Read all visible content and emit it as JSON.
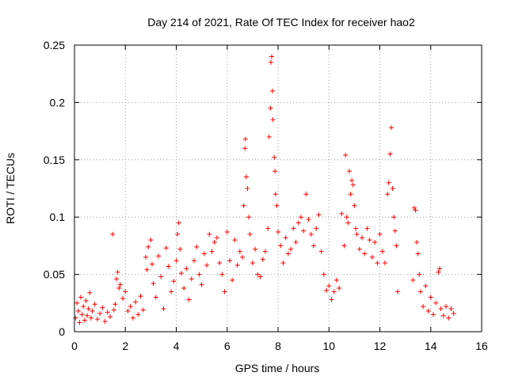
{
  "chart_data": {
    "type": "scatter",
    "title": "Day 214 of 2021, Rate Of TEC Index for receiver hao2",
    "xlabel": "GPS time / hours",
    "ylabel": "ROTI / TECUs",
    "xlim": [
      0,
      16
    ],
    "ylim": [
      0,
      0.25
    ],
    "xticks": [
      0,
      2,
      4,
      6,
      8,
      10,
      12,
      14,
      16
    ],
    "yticks": [
      0,
      0.05,
      0.1,
      0.15,
      0.2,
      0.25
    ],
    "ytick_labels": [
      "0",
      "0.05",
      "0.1",
      "0.15",
      "0.2",
      "0.25"
    ],
    "grid": true,
    "marker": "+",
    "color": "#ff0000",
    "series": [
      {
        "name": "ROTI",
        "points": [
          [
            0.05,
            0.012
          ],
          [
            0.1,
            0.025
          ],
          [
            0.15,
            0.018
          ],
          [
            0.2,
            0.008
          ],
          [
            0.25,
            0.03
          ],
          [
            0.3,
            0.015
          ],
          [
            0.35,
            0.022
          ],
          [
            0.4,
            0.01
          ],
          [
            0.45,
            0.027
          ],
          [
            0.5,
            0.014
          ],
          [
            0.55,
            0.02
          ],
          [
            0.6,
            0.034
          ],
          [
            0.65,
            0.012
          ],
          [
            0.7,
            0.018
          ],
          [
            0.8,
            0.024
          ],
          [
            0.9,
            0.011
          ],
          [
            1.0,
            0.016
          ],
          [
            1.1,
            0.021
          ],
          [
            1.2,
            0.009
          ],
          [
            1.3,
            0.017
          ],
          [
            1.4,
            0.013
          ],
          [
            1.5,
            0.085
          ],
          [
            1.55,
            0.019
          ],
          [
            1.6,
            0.024
          ],
          [
            1.65,
            0.046
          ],
          [
            1.7,
            0.052
          ],
          [
            1.75,
            0.038
          ],
          [
            1.8,
            0.041
          ],
          [
            1.9,
            0.029
          ],
          [
            2.0,
            0.035
          ],
          [
            2.1,
            0.018
          ],
          [
            2.2,
            0.022
          ],
          [
            2.3,
            0.012
          ],
          [
            2.4,
            0.026
          ],
          [
            2.5,
            0.015
          ],
          [
            2.6,
            0.031
          ],
          [
            2.7,
            0.019
          ],
          [
            2.8,
            0.065
          ],
          [
            2.85,
            0.054
          ],
          [
            2.9,
            0.074
          ],
          [
            3.0,
            0.08
          ],
          [
            3.05,
            0.059
          ],
          [
            3.1,
            0.042
          ],
          [
            3.2,
            0.03
          ],
          [
            3.3,
            0.066
          ],
          [
            3.4,
            0.048
          ],
          [
            3.5,
            0.02
          ],
          [
            3.6,
            0.073
          ],
          [
            3.7,
            0.057
          ],
          [
            3.8,
            0.035
          ],
          [
            3.9,
            0.044
          ],
          [
            4.0,
            0.062
          ],
          [
            4.05,
            0.085
          ],
          [
            4.1,
            0.095
          ],
          [
            4.15,
            0.072
          ],
          [
            4.2,
            0.051
          ],
          [
            4.3,
            0.038
          ],
          [
            4.4,
            0.055
          ],
          [
            4.5,
            0.028
          ],
          [
            4.6,
            0.046
          ],
          [
            4.7,
            0.062
          ],
          [
            4.8,
            0.074
          ],
          [
            4.9,
            0.05
          ],
          [
            5.0,
            0.041
          ],
          [
            5.1,
            0.068
          ],
          [
            5.2,
            0.058
          ],
          [
            5.3,
            0.085
          ],
          [
            5.4,
            0.07
          ],
          [
            5.5,
            0.078
          ],
          [
            5.6,
            0.082
          ],
          [
            5.7,
            0.06
          ],
          [
            5.8,
            0.05
          ],
          [
            5.9,
            0.035
          ],
          [
            6.0,
            0.087
          ],
          [
            6.1,
            0.062
          ],
          [
            6.2,
            0.045
          ],
          [
            6.3,
            0.08
          ],
          [
            6.4,
            0.058
          ],
          [
            6.5,
            0.07
          ],
          [
            6.6,
            0.065
          ],
          [
            6.65,
            0.11
          ],
          [
            6.7,
            0.16
          ],
          [
            6.72,
            0.168
          ],
          [
            6.75,
            0.135
          ],
          [
            6.8,
            0.125
          ],
          [
            6.85,
            0.1
          ],
          [
            6.9,
            0.085
          ],
          [
            7.0,
            0.06
          ],
          [
            7.1,
            0.072
          ],
          [
            7.2,
            0.05
          ],
          [
            7.3,
            0.048
          ],
          [
            7.4,
            0.063
          ],
          [
            7.5,
            0.07
          ],
          [
            7.6,
            0.09
          ],
          [
            7.65,
            0.17
          ],
          [
            7.7,
            0.195
          ],
          [
            7.72,
            0.235
          ],
          [
            7.75,
            0.24
          ],
          [
            7.78,
            0.21
          ],
          [
            7.8,
            0.185
          ],
          [
            7.85,
            0.152
          ],
          [
            7.88,
            0.14
          ],
          [
            7.9,
            0.12
          ],
          [
            7.95,
            0.11
          ],
          [
            8.0,
            0.087
          ],
          [
            8.1,
            0.075
          ],
          [
            8.2,
            0.06
          ],
          [
            8.3,
            0.082
          ],
          [
            8.4,
            0.068
          ],
          [
            8.5,
            0.072
          ],
          [
            8.6,
            0.09
          ],
          [
            8.7,
            0.078
          ],
          [
            8.8,
            0.095
          ],
          [
            8.9,
            0.1
          ],
          [
            9.0,
            0.088
          ],
          [
            9.1,
            0.12
          ],
          [
            9.2,
            0.098
          ],
          [
            9.3,
            0.085
          ],
          [
            9.4,
            0.075
          ],
          [
            9.5,
            0.09
          ],
          [
            9.6,
            0.102
          ],
          [
            9.7,
            0.07
          ],
          [
            9.8,
            0.05
          ],
          [
            9.9,
            0.036
          ],
          [
            10.0,
            0.04
          ],
          [
            10.1,
            0.028
          ],
          [
            10.2,
            0.035
          ],
          [
            10.3,
            0.045
          ],
          [
            10.4,
            0.038
          ],
          [
            10.5,
            0.103
          ],
          [
            10.6,
            0.075
          ],
          [
            10.65,
            0.154
          ],
          [
            10.7,
            0.1
          ],
          [
            10.75,
            0.095
          ],
          [
            10.8,
            0.14
          ],
          [
            10.85,
            0.12
          ],
          [
            10.9,
            0.132
          ],
          [
            10.95,
            0.128
          ],
          [
            11.0,
            0.11
          ],
          [
            11.05,
            0.09
          ],
          [
            11.1,
            0.085
          ],
          [
            11.2,
            0.072
          ],
          [
            11.3,
            0.082
          ],
          [
            11.4,
            0.068
          ],
          [
            11.5,
            0.09
          ],
          [
            11.6,
            0.08
          ],
          [
            11.7,
            0.065
          ],
          [
            11.8,
            0.078
          ],
          [
            11.9,
            0.06
          ],
          [
            12.0,
            0.085
          ],
          [
            12.1,
            0.07
          ],
          [
            12.2,
            0.06
          ],
          [
            12.3,
            0.12
          ],
          [
            12.35,
            0.13
          ],
          [
            12.4,
            0.155
          ],
          [
            12.45,
            0.178
          ],
          [
            12.5,
            0.125
          ],
          [
            12.55,
            0.1
          ],
          [
            12.6,
            0.088
          ],
          [
            12.65,
            0.075
          ],
          [
            12.7,
            0.035
          ],
          [
            13.3,
            0.045
          ],
          [
            13.35,
            0.108
          ],
          [
            13.4,
            0.106
          ],
          [
            13.45,
            0.078
          ],
          [
            13.5,
            0.068
          ],
          [
            13.55,
            0.05
          ],
          [
            13.6,
            0.035
          ],
          [
            13.7,
            0.022
          ],
          [
            13.8,
            0.04
          ],
          [
            13.9,
            0.018
          ],
          [
            14.0,
            0.03
          ],
          [
            14.1,
            0.015
          ],
          [
            14.2,
            0.025
          ],
          [
            14.3,
            0.052
          ],
          [
            14.35,
            0.055
          ],
          [
            14.4,
            0.02
          ],
          [
            14.5,
            0.014
          ],
          [
            14.6,
            0.022
          ],
          [
            14.7,
            0.012
          ],
          [
            14.8,
            0.02
          ],
          [
            14.9,
            0.016
          ]
        ]
      }
    ]
  }
}
